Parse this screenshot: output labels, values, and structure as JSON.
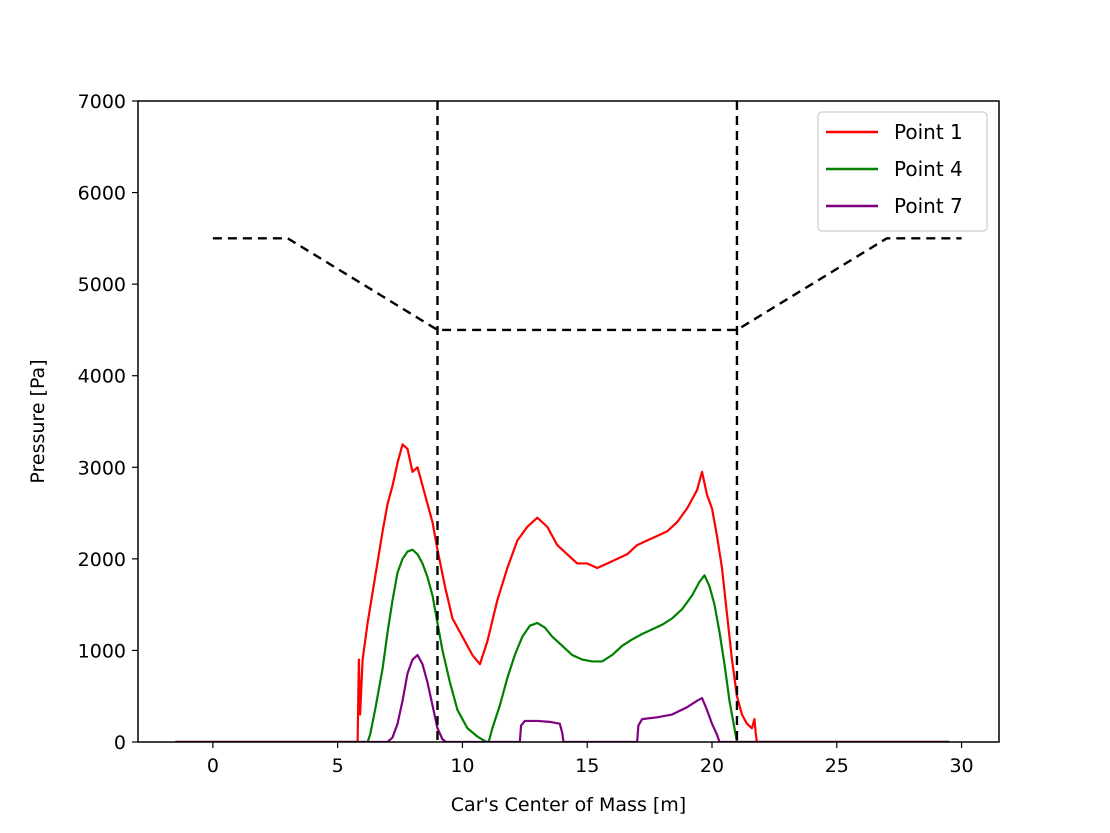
{
  "chart_data": {
    "type": "line",
    "xlabel": "Car's Center of Mass [m]",
    "ylabel": "Pressure [Pa]",
    "xlim": [
      -3,
      31.5
    ],
    "ylim": [
      0,
      7000
    ],
    "x_ticks": [
      0,
      5,
      10,
      15,
      20,
      25,
      30
    ],
    "y_ticks": [
      0,
      1000,
      2000,
      3000,
      4000,
      5000,
      6000,
      7000
    ],
    "grid": false,
    "legend_position": "upper right",
    "series": [
      {
        "name": "Point 1",
        "color": "#ff0000",
        "x": [
          -1.5,
          5.8,
          5.85,
          5.9,
          5.95,
          6.0,
          6.2,
          6.5,
          6.8,
          7.0,
          7.2,
          7.4,
          7.6,
          7.8,
          8.0,
          8.2,
          8.4,
          8.6,
          8.8,
          9.0,
          9.3,
          9.6,
          10.0,
          10.4,
          10.7,
          11.0,
          11.4,
          11.8,
          12.2,
          12.6,
          13.0,
          13.4,
          13.8,
          14.2,
          14.6,
          15.0,
          15.4,
          15.8,
          16.2,
          16.6,
          17.0,
          17.4,
          17.8,
          18.2,
          18.6,
          19.0,
          19.4,
          19.6,
          19.8,
          20.0,
          20.2,
          20.4,
          20.6,
          20.8,
          21.0,
          21.2,
          21.4,
          21.6,
          21.7,
          21.75,
          21.8,
          29.5
        ],
        "y": [
          0,
          0,
          900,
          300,
          600,
          900,
          1300,
          1800,
          2300,
          2600,
          2800,
          3050,
          3250,
          3200,
          2950,
          3000,
          2800,
          2600,
          2400,
          2100,
          1700,
          1350,
          1150,
          950,
          850,
          1100,
          1550,
          1900,
          2200,
          2350,
          2450,
          2350,
          2150,
          2050,
          1950,
          1950,
          1900,
          1950,
          2000,
          2050,
          2150,
          2200,
          2250,
          2300,
          2400,
          2550,
          2750,
          2950,
          2700,
          2550,
          2250,
          1900,
          1400,
          900,
          500,
          300,
          200,
          150,
          250,
          100,
          0,
          0
        ]
      },
      {
        "name": "Point 4",
        "color": "#008000",
        "x": [
          -1.5,
          6.2,
          6.3,
          6.5,
          6.8,
          7.0,
          7.2,
          7.4,
          7.6,
          7.8,
          8.0,
          8.2,
          8.4,
          8.6,
          8.8,
          9.0,
          9.2,
          9.5,
          9.8,
          10.2,
          10.6,
          10.9,
          11.0,
          11.05,
          11.2,
          11.5,
          11.8,
          12.1,
          12.4,
          12.7,
          13.0,
          13.3,
          13.6,
          14.0,
          14.4,
          14.8,
          15.2,
          15.6,
          16.0,
          16.4,
          16.8,
          17.2,
          17.6,
          18.0,
          18.4,
          18.8,
          19.2,
          19.5,
          19.7,
          19.9,
          20.1,
          20.3,
          20.5,
          20.7,
          20.9,
          21.0,
          29.5
        ],
        "y": [
          0,
          0,
          80,
          350,
          800,
          1200,
          1550,
          1850,
          2000,
          2080,
          2100,
          2050,
          1950,
          1800,
          1600,
          1300,
          1000,
          650,
          350,
          150,
          60,
          10,
          0,
          0,
          150,
          400,
          700,
          950,
          1150,
          1270,
          1300,
          1250,
          1150,
          1050,
          950,
          900,
          880,
          880,
          950,
          1050,
          1120,
          1180,
          1230,
          1280,
          1350,
          1450,
          1600,
          1750,
          1820,
          1700,
          1500,
          1200,
          850,
          450,
          150,
          0,
          0
        ]
      },
      {
        "name": "Point 7",
        "color": "#800080",
        "x": [
          -1.5,
          7.0,
          7.2,
          7.4,
          7.6,
          7.8,
          8.0,
          8.2,
          8.4,
          8.6,
          8.8,
          9.0,
          9.2,
          9.35,
          9.4,
          12.3,
          12.35,
          12.5,
          13.0,
          13.5,
          13.9,
          14.0,
          14.05,
          17.0,
          17.05,
          17.2,
          17.8,
          18.4,
          19.0,
          19.4,
          19.6,
          19.8,
          20.0,
          20.2,
          20.3,
          29.5
        ],
        "y": [
          0,
          0,
          50,
          200,
          450,
          750,
          900,
          950,
          850,
          650,
          400,
          150,
          30,
          0,
          0,
          0,
          180,
          230,
          230,
          220,
          200,
          100,
          0,
          0,
          180,
          250,
          270,
          300,
          380,
          450,
          480,
          350,
          200,
          80,
          0,
          0
        ]
      },
      {
        "name": "",
        "color": "#000000",
        "dashed": true,
        "x": [
          0,
          3,
          9,
          21,
          27,
          30
        ],
        "y": [
          5500,
          5500,
          4500,
          4500,
          5500,
          5500
        ]
      }
    ],
    "vertical_lines": [
      {
        "x": 9,
        "color": "#000000",
        "dashed": true
      },
      {
        "x": 21,
        "color": "#000000",
        "dashed": true
      }
    ]
  }
}
